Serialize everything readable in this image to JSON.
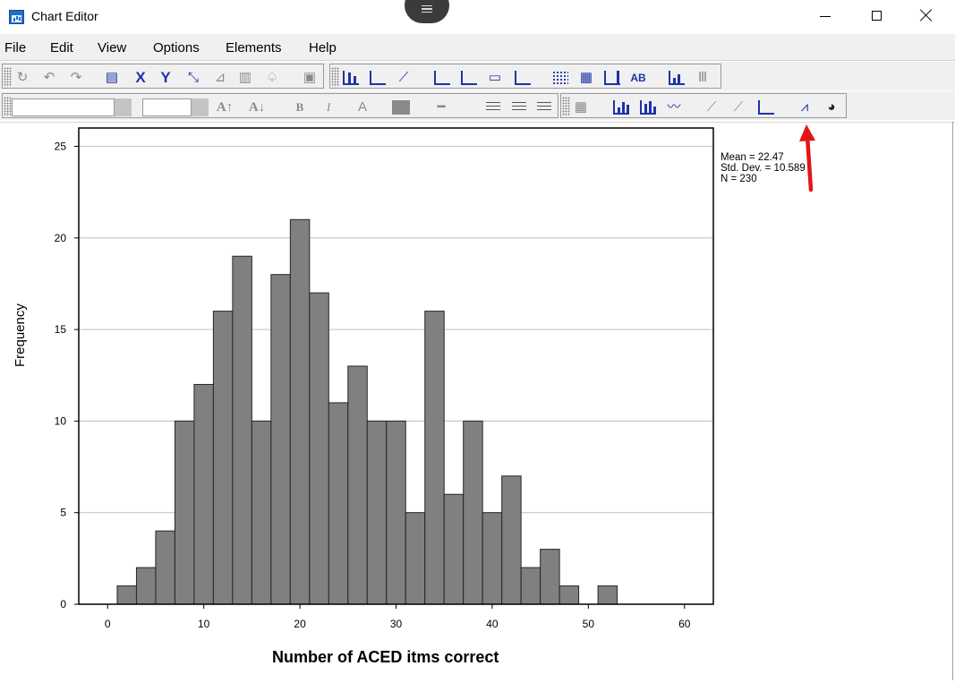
{
  "window": {
    "title": "Chart Editor",
    "controls": {
      "minimize_icon": "minimize-icon",
      "maximize_icon": "maximize-icon",
      "close_icon": "close-icon"
    }
  },
  "menubar": {
    "items": [
      "File",
      "Edit",
      "View",
      "Options",
      "Elements",
      "Help"
    ]
  },
  "toolbar_row1": {
    "icons": [
      "refresh-icon",
      "undo-icon",
      "redo-icon",
      "properties-icon",
      "x-axis-icon",
      "y-axis-icon",
      "rescale-icon",
      "transpose-icon",
      "dataset-icon",
      "lasso-icon",
      "paste-icon",
      "bars-icon",
      "horizontal-bars-icon",
      "line-icon",
      "title-icon",
      "footnote-icon",
      "text-box-icon",
      "legend-icon",
      "grid-dots-icon",
      "grid-lines-icon",
      "ticks-icon",
      "data-labels-icon",
      "sort-icon",
      "bar-chart-icon"
    ]
  },
  "toolbar_row2": {
    "font_family_value": "",
    "font_size_value": "",
    "icons": [
      "font-grow-icon",
      "font-shrink-icon",
      "bold-icon",
      "italic-icon",
      "text-color-icon",
      "fill-color-icon",
      "line-style-icon",
      "align-left-icon",
      "align-center-icon",
      "align-right-icon",
      "chart-grid-icon",
      "bar-icon",
      "clustered-bar-icon",
      "line-chart-icon",
      "scatter-icon",
      "area-icon",
      "fit-line-icon",
      "distribution-curve-icon",
      "pie-icon"
    ],
    "colors": {
      "accent": "#1d33a8"
    }
  },
  "annotation": {
    "arrow_color": "#e31515"
  },
  "chart_data": {
    "type": "bar",
    "subtype": "histogram",
    "bin_width": 2,
    "bins_start": [
      1,
      3,
      5,
      7,
      9,
      11,
      13,
      15,
      17,
      19,
      21,
      23,
      25,
      27,
      29,
      31,
      33,
      35,
      37,
      39,
      41,
      43,
      45,
      47,
      49,
      51
    ],
    "values": [
      1,
      2,
      4,
      10,
      12,
      16,
      19,
      10,
      18,
      21,
      17,
      11,
      13,
      10,
      10,
      5,
      16,
      6,
      10,
      5,
      7,
      2,
      3,
      1,
      0,
      1
    ],
    "xlabel": "Number of ACED itms correct",
    "ylabel": "Frequency",
    "xlim": [
      -3,
      63
    ],
    "ylim": [
      0,
      26
    ],
    "x_ticks": [
      "0",
      "10",
      "20",
      "30",
      "40",
      "50",
      "60"
    ],
    "y_ticks": [
      "0",
      "5",
      "10",
      "15",
      "20",
      "25"
    ],
    "grid": "horizontal",
    "bar_color": "#808080",
    "stats": {
      "mean": "Mean = 22.47",
      "std": "Std. Dev. = 10.589",
      "n": "N = 230"
    }
  }
}
